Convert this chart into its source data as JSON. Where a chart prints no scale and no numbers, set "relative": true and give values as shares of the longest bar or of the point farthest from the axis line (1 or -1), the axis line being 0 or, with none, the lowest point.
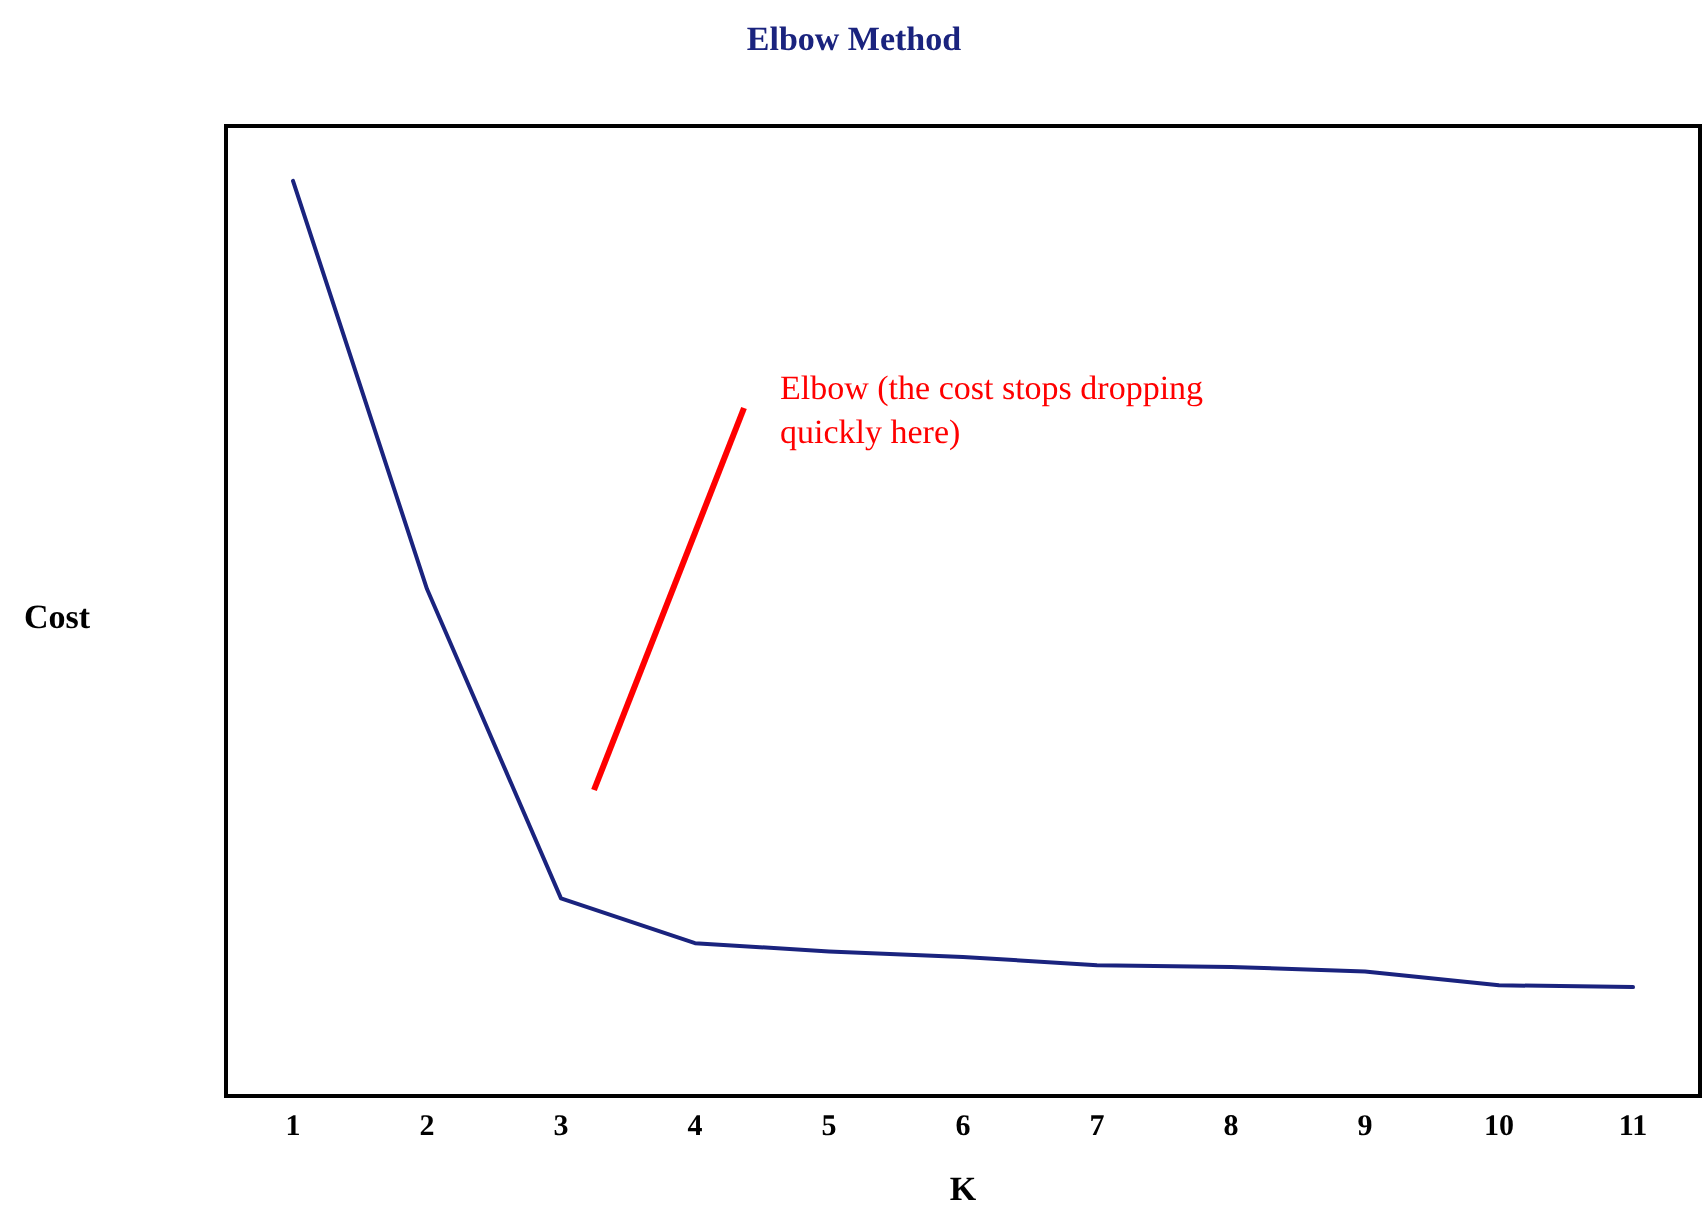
{
  "chart_data": {
    "type": "line",
    "title": "Elbow Method",
    "xlabel": "K",
    "ylabel": "Cost",
    "relative": true,
    "categories": [
      "1",
      "2",
      "3",
      "4",
      "5",
      "6",
      "7",
      "8",
      "9",
      "10",
      "11"
    ],
    "series": [
      {
        "color": "#1a237e",
        "values": [
          1.0,
          0.554,
          0.216,
          0.167,
          0.158,
          0.152,
          0.143,
          0.141,
          0.136,
          0.121,
          0.119
        ]
      }
    ],
    "annotations": [
      "Elbow (the cost stops dropping\nquickly here)"
    ],
    "grid": false,
    "marker": "none",
    "line_style": "solid"
  }
}
